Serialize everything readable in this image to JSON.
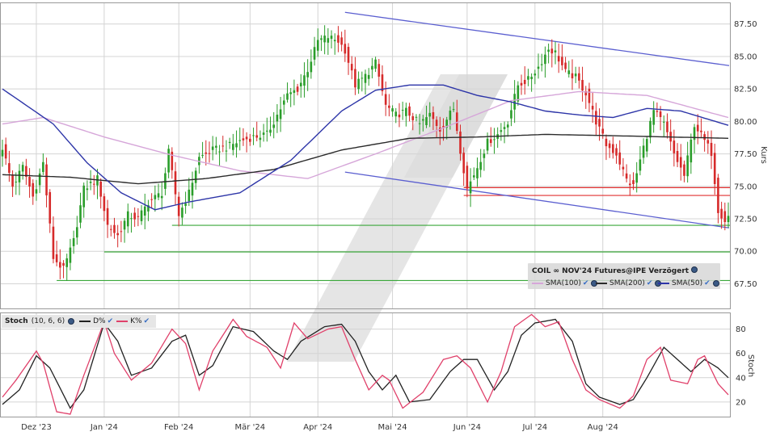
{
  "chart_data": [
    {
      "type": "candlestick",
      "title": "COIL ∞ NOV'24 Futures@IPE Verzögert",
      "ylabel": "Kurs",
      "ylim": [
        65.6,
        89.1
      ],
      "yticks": [
        67.5,
        70.0,
        72.5,
        75.0,
        77.5,
        80.0,
        82.5,
        85.0,
        87.5
      ],
      "ytick_labels": [
        "67.50",
        "70.00",
        "72.50",
        "75.00",
        "77.50",
        "80.00",
        "82.50",
        "85.00",
        "87.50"
      ],
      "x_months": [
        {
          "label": "Dez '23",
          "index": 10
        },
        {
          "label": "Jan '24",
          "index": 30
        },
        {
          "label": "Feb '24",
          "index": 52
        },
        {
          "label": "Mär '24",
          "index": 73
        },
        {
          "label": "Apr '24",
          "index": 93
        },
        {
          "label": "Mai '24",
          "index": 115
        },
        {
          "label": "Jun '24",
          "index": 137
        },
        {
          "label": "Jul '24",
          "index": 157
        },
        {
          "label": "Aug '24",
          "index": 177
        }
      ],
      "close_anchors": [
        [
          0,
          78.0
        ],
        [
          3,
          75.0
        ],
        [
          6,
          76.5
        ],
        [
          9,
          74.2
        ],
        [
          12,
          76.8
        ],
        [
          15,
          69.5
        ],
        [
          18,
          68.6
        ],
        [
          21,
          70.8
        ],
        [
          24,
          74.8
        ],
        [
          28,
          75.6
        ],
        [
          31,
          72.0
        ],
        [
          34,
          71.2
        ],
        [
          37,
          72.8
        ],
        [
          40,
          72.5
        ],
        [
          43,
          73.8
        ],
        [
          47,
          74.5
        ],
        [
          49,
          77.6
        ],
        [
          52,
          72.8
        ],
        [
          55,
          74.5
        ],
        [
          58,
          77.2
        ],
        [
          62,
          77.8
        ],
        [
          66,
          78.0
        ],
        [
          70,
          78.5
        ],
        [
          74,
          78.8
        ],
        [
          78,
          79.0
        ],
        [
          81,
          80.5
        ],
        [
          84,
          82.0
        ],
        [
          87,
          82.5
        ],
        [
          90,
          84.0
        ],
        [
          93,
          86.2
        ],
        [
          96,
          86.5
        ],
        [
          99,
          86.2
        ],
        [
          101,
          85.5
        ],
        [
          104,
          82.8
        ],
        [
          107,
          83.5
        ],
        [
          110,
          84.5
        ],
        [
          113,
          81.2
        ],
        [
          116,
          80.5
        ],
        [
          119,
          80.8
        ],
        [
          123,
          79.8
        ],
        [
          126,
          80.5
        ],
        [
          129,
          79.4
        ],
        [
          133,
          81.0
        ],
        [
          135,
          77.8
        ],
        [
          137,
          74.8
        ],
        [
          140,
          76.5
        ],
        [
          143,
          78.4
        ],
        [
          146,
          79.0
        ],
        [
          149,
          80.0
        ],
        [
          152,
          82.8
        ],
        [
          155,
          83.2
        ],
        [
          158,
          84.2
        ],
        [
          161,
          85.6
        ],
        [
          163,
          85.3
        ],
        [
          166,
          83.8
        ],
        [
          169,
          83.4
        ],
        [
          172,
          82.2
        ],
        [
          175,
          80.0
        ],
        [
          178,
          78.2
        ],
        [
          181,
          77.5
        ],
        [
          184,
          75.5
        ],
        [
          186,
          75.0
        ],
        [
          189,
          78.0
        ],
        [
          192,
          80.8
        ],
        [
          195,
          79.8
        ],
        [
          198,
          77.5
        ],
        [
          201,
          75.8
        ],
        [
          204,
          79.8
        ],
        [
          207,
          78.5
        ],
        [
          209,
          77.6
        ],
        [
          211,
          73.2
        ],
        [
          213,
          72.4
        ],
        [
          214,
          72.7
        ]
      ],
      "n_candles": 215,
      "sma": [
        {
          "name": "SMA(100)",
          "color": "#d6a6d9",
          "anchors": [
            [
              0,
              79.8
            ],
            [
              12,
              80.3
            ],
            [
              30,
              78.8
            ],
            [
              50,
              77.4
            ],
            [
              70,
              76.2
            ],
            [
              90,
              75.6
            ],
            [
              110,
              77.5
            ],
            [
              130,
              79.5
            ],
            [
              150,
              81.6
            ],
            [
              170,
              82.3
            ],
            [
              190,
              82.0
            ],
            [
              214,
              80.3
            ]
          ]
        },
        {
          "name": "SMA(200)",
          "color": "#2b2b2b",
          "anchors": [
            [
              0,
              75.9
            ],
            [
              20,
              75.7
            ],
            [
              40,
              75.2
            ],
            [
              60,
              75.6
            ],
            [
              80,
              76.3
            ],
            [
              100,
              77.8
            ],
            [
              120,
              78.7
            ],
            [
              140,
              78.8
            ],
            [
              160,
              79.0
            ],
            [
              180,
              78.9
            ],
            [
              214,
              78.7
            ]
          ]
        },
        {
          "name": "SMA(50)",
          "color": "#2d35a8",
          "anchors": [
            [
              0,
              82.5
            ],
            [
              15,
              79.8
            ],
            [
              25,
              76.8
            ],
            [
              35,
              74.5
            ],
            [
              45,
              73.2
            ],
            [
              55,
              73.8
            ],
            [
              70,
              74.5
            ],
            [
              85,
              77.0
            ],
            [
              100,
              80.8
            ],
            [
              110,
              82.4
            ],
            [
              120,
              82.8
            ],
            [
              130,
              82.8
            ],
            [
              140,
              82.0
            ],
            [
              150,
              81.5
            ],
            [
              160,
              80.8
            ],
            [
              170,
              80.5
            ],
            [
              180,
              80.3
            ],
            [
              190,
              81.0
            ],
            [
              200,
              80.8
            ],
            [
              214,
              79.7
            ]
          ]
        }
      ],
      "trend_lines": [
        {
          "color": "#5b5fd0",
          "points": [
            [
              101,
              88.4
            ],
            [
              214,
              84.3
            ]
          ]
        },
        {
          "color": "#5b5fd0",
          "points": [
            [
              101,
              76.1
            ],
            [
              214,
              71.8
            ]
          ]
        }
      ],
      "horizontal_lines": [
        {
          "color": "#e03030",
          "y": 74.9,
          "from": 136
        },
        {
          "color": "#e03030",
          "y": 74.3,
          "from": 136
        },
        {
          "color": "#3aa83a",
          "y": 72.0,
          "from": 50
        },
        {
          "color": "#3aa83a",
          "y": 69.95,
          "from": 30
        },
        {
          "color": "#3aa83a",
          "y": 67.75,
          "from": 16
        }
      ],
      "legend": {
        "position": "bottom-right",
        "entries": [
          "SMA(100)",
          "SMA(200)",
          "SMA(50)"
        ]
      }
    },
    {
      "type": "line",
      "title": "Stoch",
      "params": "(10, 6, 6)",
      "ylabel": "Stoch",
      "ylim": [
        8,
        93
      ],
      "yticks": [
        20,
        40,
        60,
        80
      ],
      "ytick_labels": [
        "20",
        "40",
        "60",
        "80"
      ],
      "series": [
        {
          "name": "D%",
          "color": "#222222",
          "anchors": [
            [
              0,
              18
            ],
            [
              5,
              30
            ],
            [
              10,
              58
            ],
            [
              14,
              48
            ],
            [
              20,
              15
            ],
            [
              24,
              30
            ],
            [
              30,
              85
            ],
            [
              34,
              70
            ],
            [
              38,
              42
            ],
            [
              44,
              48
            ],
            [
              50,
              70
            ],
            [
              54,
              75
            ],
            [
              58,
              42
            ],
            [
              62,
              50
            ],
            [
              68,
              82
            ],
            [
              74,
              78
            ],
            [
              80,
              62
            ],
            [
              84,
              55
            ],
            [
              88,
              70
            ],
            [
              95,
              82
            ],
            [
              100,
              84
            ],
            [
              104,
              70
            ],
            [
              108,
              45
            ],
            [
              112,
              30
            ],
            [
              116,
              42
            ],
            [
              120,
              20
            ],
            [
              126,
              22
            ],
            [
              132,
              45
            ],
            [
              136,
              55
            ],
            [
              140,
              55
            ],
            [
              145,
              30
            ],
            [
              149,
              45
            ],
            [
              153,
              75
            ],
            [
              157,
              85
            ],
            [
              163,
              88
            ],
            [
              168,
              70
            ],
            [
              172,
              35
            ],
            [
              176,
              24
            ],
            [
              182,
              18
            ],
            [
              186,
              22
            ],
            [
              190,
              40
            ],
            [
              195,
              65
            ],
            [
              199,
              55
            ],
            [
              203,
              45
            ],
            [
              207,
              55
            ],
            [
              211,
              48
            ],
            [
              214,
              40
            ]
          ]
        },
        {
          "name": "K%",
          "color": "#e0406a",
          "anchors": [
            [
              0,
              24
            ],
            [
              4,
              38
            ],
            [
              10,
              62
            ],
            [
              12,
              52
            ],
            [
              16,
              12
            ],
            [
              20,
              10
            ],
            [
              24,
              42
            ],
            [
              30,
              86
            ],
            [
              33,
              60
            ],
            [
              38,
              38
            ],
            [
              44,
              52
            ],
            [
              50,
              80
            ],
            [
              54,
              68
            ],
            [
              58,
              30
            ],
            [
              62,
              62
            ],
            [
              68,
              88
            ],
            [
              72,
              74
            ],
            [
              78,
              65
            ],
            [
              82,
              48
            ],
            [
              86,
              85
            ],
            [
              90,
              72
            ],
            [
              96,
              80
            ],
            [
              100,
              82
            ],
            [
              104,
              55
            ],
            [
              108,
              30
            ],
            [
              112,
              42
            ],
            [
              114,
              38
            ],
            [
              118,
              15
            ],
            [
              124,
              28
            ],
            [
              130,
              55
            ],
            [
              134,
              58
            ],
            [
              138,
              48
            ],
            [
              143,
              20
            ],
            [
              147,
              45
            ],
            [
              151,
              82
            ],
            [
              156,
              92
            ],
            [
              160,
              82
            ],
            [
              164,
              86
            ],
            [
              168,
              55
            ],
            [
              172,
              30
            ],
            [
              176,
              22
            ],
            [
              182,
              15
            ],
            [
              186,
              25
            ],
            [
              190,
              55
            ],
            [
              194,
              65
            ],
            [
              197,
              38
            ],
            [
              202,
              35
            ],
            [
              205,
              55
            ],
            [
              207,
              58
            ],
            [
              211,
              35
            ],
            [
              214,
              26
            ]
          ]
        }
      ]
    }
  ],
  "legend_main": {
    "title": "COIL ∞ NOV'24 Futures@IPE Verzögert",
    "items": [
      "SMA(100)",
      "SMA(200)",
      "SMA(50)"
    ]
  },
  "legend_stoch": {
    "name": "Stoch",
    "params": "(10, 6, 6)",
    "items": [
      "D%",
      "K%"
    ]
  },
  "colors": {
    "candle_up": "#2a9d2a",
    "candle_down": "#d62a2a",
    "grid": "#d4d4d4",
    "watermark": "#e4e4e4"
  }
}
